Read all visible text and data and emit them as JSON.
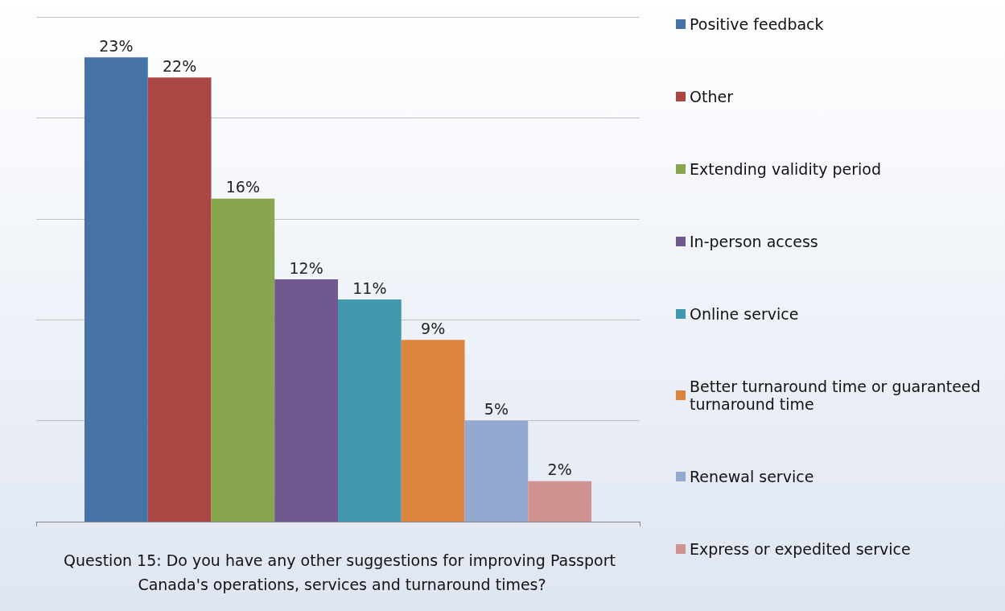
{
  "chart_data": {
    "type": "bar",
    "xlabel": "Question 15: Do you have any other suggestions for improving Passport Canada's operations, services and turnaround times?",
    "categories": [
      null
    ],
    "series": [
      {
        "name": "Positive feedback",
        "color": "#4572a7",
        "values": [
          23
        ],
        "value_labels": [
          "23%"
        ]
      },
      {
        "name": "Other",
        "color": "#aa4643",
        "values": [
          22
        ],
        "value_labels": [
          "22%"
        ]
      },
      {
        "name": "Extending validity period",
        "color": "#89a54e",
        "values": [
          16
        ],
        "value_labels": [
          "16%"
        ]
      },
      {
        "name": "In-person access",
        "color": "#71588f",
        "values": [
          12
        ],
        "value_labels": [
          "12%"
        ]
      },
      {
        "name": "Online service",
        "color": "#4198af",
        "values": [
          11
        ],
        "value_labels": [
          "11%"
        ]
      },
      {
        "name": "Better turnaround time or guaranteed turnaround time",
        "color": "#db843d",
        "values": [
          9
        ],
        "value_labels": [
          "9%"
        ]
      },
      {
        "name": "Renewal service",
        "color": "#93a9cf",
        "values": [
          5
        ],
        "value_labels": [
          "5%"
        ]
      },
      {
        "name": "Express or expedited service",
        "color": "#d19392",
        "values": [
          2
        ],
        "value_labels": [
          "2%"
        ]
      }
    ],
    "grid": "y",
    "legend": "right"
  }
}
